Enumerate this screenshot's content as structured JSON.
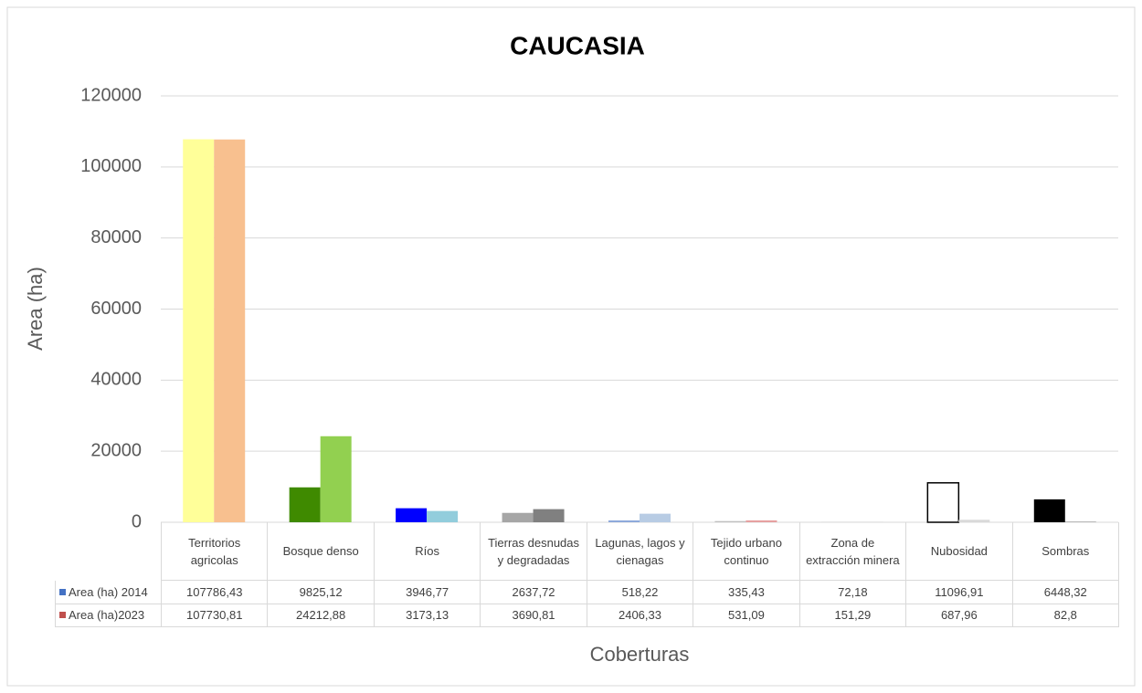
{
  "chart_data": {
    "type": "bar",
    "title": "CAUCASIA",
    "y_label": "Area (ha)",
    "x_label": "Coberturas",
    "categories": [
      "Territorios agricolas",
      "Bosque denso",
      "Ríos",
      "Tierras desnudas y degradadas",
      "Lagunas, lagos y cienagas",
      "Tejido urbano continuo",
      "Zona de extracción minera",
      "Nubosidad",
      "Sombras"
    ],
    "series": [
      {
        "name": "Area (ha) 2014",
        "color": "#4472c4",
        "bar_colors": [
          "#ffff99",
          "#3f8a00",
          "#0000ff",
          "#a6a6a6",
          "#8eaadb",
          "#bfbfbf",
          "#c9c9c9",
          "#ffffff",
          "#000000"
        ],
        "values": [
          107786.43,
          9825.12,
          3946.77,
          2637.72,
          518.22,
          335.43,
          72.18,
          11096.91,
          6448.32
        ],
        "value_labels": [
          "107786,43",
          "9825,12",
          "3946,77",
          "2637,72",
          "518,22",
          "335,43",
          "72,18",
          "11096,91",
          "6448,32"
        ]
      },
      {
        "name": "Area (ha)2023",
        "color": "#c0504d",
        "bar_colors": [
          "#f8c08f",
          "#92d050",
          "#92cddc",
          "#808080",
          "#b8cce4",
          "#e6a0a0",
          "#d9d9d9",
          "#d9d9d9",
          "#404040"
        ],
        "values": [
          107730.81,
          24212.88,
          3173.13,
          3690.81,
          2406.33,
          531.09,
          151.29,
          687.96,
          82.8
        ],
        "value_labels": [
          "107730,81",
          "24212,88",
          "3173,13",
          "3690,81",
          "2406,33",
          "531,09",
          "151,29",
          "687,96",
          "82,8"
        ]
      }
    ],
    "ylim": [
      0,
      120000
    ],
    "yticks": [
      0,
      20000,
      40000,
      60000,
      80000,
      100000,
      120000
    ],
    "grid": true
  }
}
